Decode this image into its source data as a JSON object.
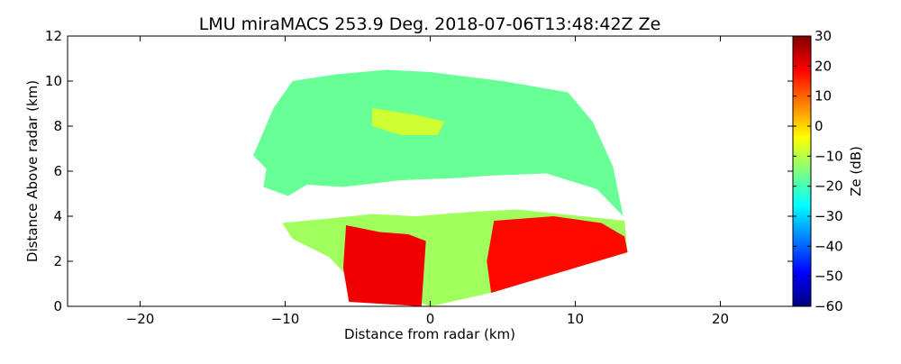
{
  "chart_data": {
    "type": "heatmap",
    "title": "LMU miraMACS 253.9 Deg. 2018-07-06T13:48:42Z  Ze",
    "xlabel": "Distance from radar (km)",
    "ylabel": "Distance Above radar  (km)",
    "xlim": [
      -25,
      25
    ],
    "ylim": [
      0,
      12
    ],
    "xticks": [
      -20,
      -10,
      0,
      10,
      20
    ],
    "xtick_labels": [
      "−20",
      "−10",
      "0",
      "10",
      "20"
    ],
    "yticks": [
      0,
      2,
      4,
      6,
      8,
      10,
      12
    ],
    "ytick_labels": [
      "0",
      "2",
      "4",
      "6",
      "8",
      "10",
      "12"
    ],
    "colorbar": {
      "label": "Ze (dB)",
      "range": [
        -60,
        30
      ],
      "ticks": [
        30,
        20,
        10,
        0,
        -10,
        -20,
        -30,
        -40,
        -50,
        -60
      ],
      "tick_labels": [
        "30",
        "20",
        "10",
        "0",
        "−10",
        "−20",
        "−30",
        "−40",
        "−50",
        "−60"
      ],
      "colormap": "jet",
      "colors": [
        "#00007f",
        "#0000ff",
        "#007fff",
        "#00ffff",
        "#7fff7f",
        "#ffff00",
        "#ff7f00",
        "#ff0000",
        "#7f0000"
      ]
    },
    "regions": [
      {
        "name": "upper-cloud-layer",
        "typical_ze_db": -17,
        "polygon": [
          [
            -12.2,
            6.7
          ],
          [
            -10.8,
            8.8
          ],
          [
            -9.5,
            10.0
          ],
          [
            -6.5,
            10.3
          ],
          [
            -3,
            10.5
          ],
          [
            0,
            10.4
          ],
          [
            5,
            10.0
          ],
          [
            9.5,
            9.5
          ],
          [
            11.2,
            8.2
          ],
          [
            12.6,
            6.2
          ],
          [
            13.3,
            4.0
          ],
          [
            11.5,
            5.2
          ],
          [
            8,
            5.9
          ],
          [
            4,
            5.8
          ],
          [
            2,
            5.7
          ],
          [
            -2,
            5.6
          ],
          [
            -6,
            5.3
          ],
          [
            -8.5,
            5.4
          ],
          [
            -9.8,
            4.9
          ],
          [
            -11.5,
            5.3
          ],
          [
            -11.3,
            6.1
          ]
        ]
      },
      {
        "name": "upper-cloud-core",
        "typical_ze_db": -8,
        "polygon": [
          [
            -4,
            8.8
          ],
          [
            -1,
            8.5
          ],
          [
            1,
            8.2
          ],
          [
            0.5,
            7.6
          ],
          [
            -2,
            7.6
          ],
          [
            -4,
            8.0
          ]
        ]
      },
      {
        "name": "lower-cloud-layer",
        "typical_ze_db": -12,
        "polygon": [
          [
            -10.2,
            3.7
          ],
          [
            -7,
            3.9
          ],
          [
            -4,
            4.1
          ],
          [
            -1,
            4.0
          ],
          [
            3,
            4.2
          ],
          [
            6,
            4.3
          ],
          [
            9,
            4.1
          ],
          [
            12,
            3.9
          ],
          [
            13.4,
            3.8
          ],
          [
            13.6,
            2.4
          ],
          [
            4.2,
            0.6
          ],
          [
            0,
            0
          ],
          [
            -5.5,
            1.2
          ],
          [
            -7,
            2.2
          ],
          [
            -9.5,
            3.0
          ]
        ]
      },
      {
        "name": "lower-echo-left-column",
        "typical_ze_db": 20,
        "polygon": [
          [
            -5.8,
            3.6
          ],
          [
            -3.5,
            3.3
          ],
          [
            -1.5,
            3.2
          ],
          [
            -0.3,
            2.9
          ],
          [
            -0.6,
            0
          ],
          [
            -5.6,
            0.2
          ],
          [
            -6,
            1.7
          ]
        ]
      },
      {
        "name": "lower-echo-right-column",
        "typical_ze_db": 18,
        "polygon": [
          [
            4.4,
            3.8
          ],
          [
            8.5,
            4.0
          ],
          [
            11.8,
            3.7
          ],
          [
            13.4,
            3.1
          ],
          [
            13.6,
            2.4
          ],
          [
            4.2,
            0.6
          ],
          [
            3.9,
            2.0
          ]
        ]
      }
    ]
  }
}
